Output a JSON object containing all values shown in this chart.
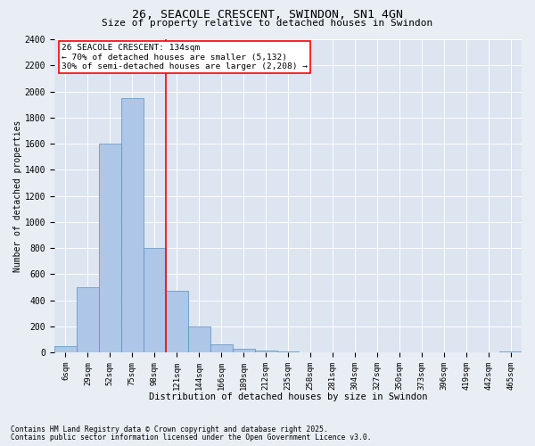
{
  "title": "26, SEACOLE CRESCENT, SWINDON, SN1 4GN",
  "subtitle": "Size of property relative to detached houses in Swindon",
  "xlabel": "Distribution of detached houses by size in Swindon",
  "ylabel": "Number of detached properties",
  "categories": [
    "6sqm",
    "29sqm",
    "52sqm",
    "75sqm",
    "98sqm",
    "121sqm",
    "144sqm",
    "166sqm",
    "189sqm",
    "212sqm",
    "235sqm",
    "258sqm",
    "281sqm",
    "304sqm",
    "327sqm",
    "350sqm",
    "373sqm",
    "396sqm",
    "419sqm",
    "442sqm",
    "465sqm"
  ],
  "values": [
    50,
    500,
    1600,
    1950,
    800,
    470,
    200,
    65,
    30,
    15,
    10,
    5,
    5,
    4,
    3,
    2,
    1,
    0,
    0,
    0,
    10
  ],
  "bar_color": "#aec6e8",
  "bar_edge_color": "#5a8fc0",
  "vline_x": 4.5,
  "vline_color": "red",
  "ylim": [
    0,
    2400
  ],
  "yticks": [
    0,
    200,
    400,
    600,
    800,
    1000,
    1200,
    1400,
    1600,
    1800,
    2000,
    2200,
    2400
  ],
  "annotation_title": "26 SEACOLE CRESCENT: 134sqm",
  "annotation_line1": "← 70% of detached houses are smaller (5,132)",
  "annotation_line2": "30% of semi-detached houses are larger (2,208) →",
  "annotation_box_edge": "red",
  "footer1": "Contains HM Land Registry data © Crown copyright and database right 2025.",
  "footer2": "Contains public sector information licensed under the Open Government Licence v3.0.",
  "bg_color": "#e8eef4",
  "plot_bg_color": "#dce5f0"
}
